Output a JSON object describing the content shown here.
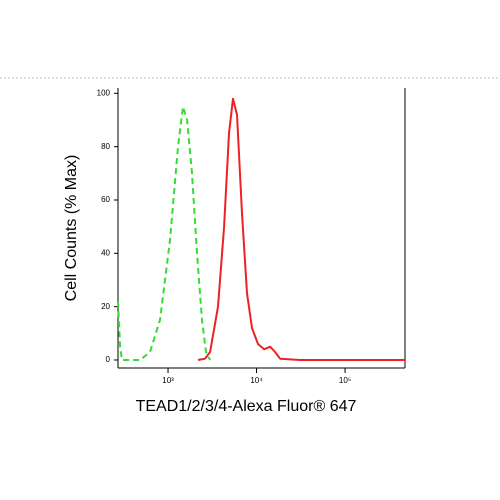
{
  "chart_data": {
    "type": "line",
    "xlabel": "TEAD1/2/3/4-Alexa Fluor® 647",
    "ylabel": "Cell Counts (% Max)",
    "xscale": "log",
    "xlim": [
      272,
      476000
    ],
    "ylim": [
      -3,
      102
    ],
    "xticks": [
      {
        "value": 1000,
        "label": "10³"
      },
      {
        "value": 10000,
        "label": "10⁴"
      },
      {
        "value": 100000,
        "label": "10⁵"
      }
    ],
    "yticks": [
      0,
      20,
      40,
      60,
      80,
      100
    ],
    "series": [
      {
        "color": "#33dd33",
        "dash": true,
        "x": [
          272,
          287,
          302,
          483,
          626,
          812,
          1053,
          1297,
          1476,
          1640,
          1867,
          2127,
          2422,
          2687,
          2985
        ],
        "values": [
          22,
          5,
          0,
          0,
          3,
          15,
          45,
          80,
          95,
          90,
          70,
          40,
          15,
          3,
          0
        ]
      },
      {
        "color": "#ee2222",
        "dash": false,
        "x": [
          2181,
          2618,
          2985,
          3673,
          4295,
          4889,
          5424,
          6021,
          6853,
          7810,
          8893,
          10400,
          12160,
          14220,
          16190,
          18450,
          31040,
          476000
        ],
        "values": [
          0,
          0.5,
          3,
          20,
          50,
          85,
          98,
          92,
          55,
          25,
          12,
          6,
          4,
          5,
          3,
          0.5,
          0,
          0
        ]
      }
    ]
  }
}
